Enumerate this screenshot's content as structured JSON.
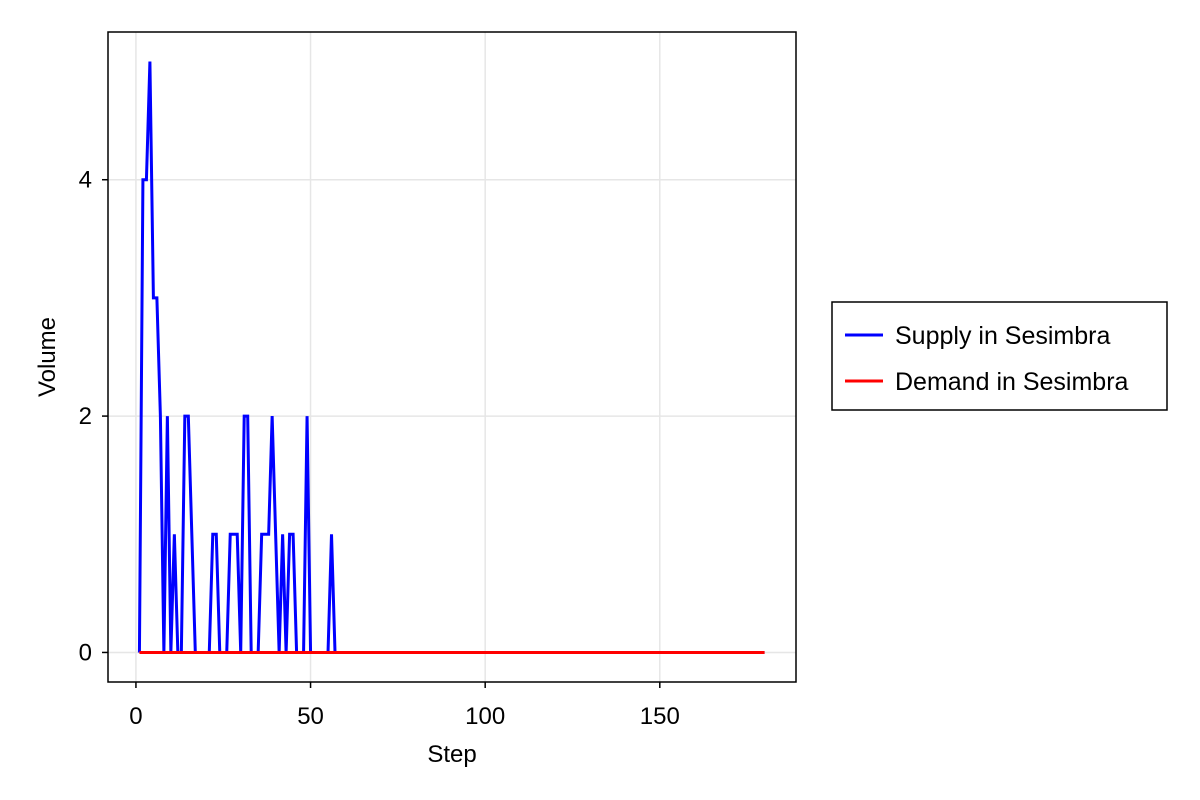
{
  "chart_data": {
    "type": "line",
    "xlabel": "Step",
    "ylabel": "Volume",
    "xlim": [
      -8,
      189
    ],
    "ylim": [
      -0.25,
      5.25
    ],
    "xticks": [
      0,
      50,
      100,
      150
    ],
    "yticks": [
      0,
      2,
      4
    ],
    "grid": true,
    "legend_position": "right",
    "series": [
      {
        "name": "Supply in Sesimbra",
        "color": "#0000ff",
        "values": [
          [
            1,
            0
          ],
          [
            2,
            4
          ],
          [
            3,
            4
          ],
          [
            4,
            5
          ],
          [
            5,
            3
          ],
          [
            6,
            3
          ],
          [
            7,
            2
          ],
          [
            8,
            0
          ],
          [
            9,
            2
          ],
          [
            10,
            0
          ],
          [
            11,
            1
          ],
          [
            12,
            0
          ],
          [
            13,
            0
          ],
          [
            14,
            2
          ],
          [
            15,
            2
          ],
          [
            16,
            1
          ],
          [
            17,
            0
          ],
          [
            18,
            0
          ],
          [
            19,
            0
          ],
          [
            20,
            0
          ],
          [
            21,
            0
          ],
          [
            22,
            1
          ],
          [
            23,
            1
          ],
          [
            24,
            0
          ],
          [
            25,
            0
          ],
          [
            26,
            0
          ],
          [
            27,
            1
          ],
          [
            28,
            1
          ],
          [
            29,
            1
          ],
          [
            30,
            0
          ],
          [
            31,
            2
          ],
          [
            32,
            2
          ],
          [
            33,
            0
          ],
          [
            34,
            0
          ],
          [
            35,
            0
          ],
          [
            36,
            1
          ],
          [
            37,
            1
          ],
          [
            38,
            1
          ],
          [
            39,
            2
          ],
          [
            40,
            1
          ],
          [
            41,
            0
          ],
          [
            42,
            1
          ],
          [
            43,
            0
          ],
          [
            44,
            1
          ],
          [
            45,
            1
          ],
          [
            46,
            0
          ],
          [
            47,
            0
          ],
          [
            48,
            0
          ],
          [
            49,
            2
          ],
          [
            50,
            0
          ],
          [
            51,
            0
          ],
          [
            52,
            0
          ],
          [
            53,
            0
          ],
          [
            54,
            0
          ],
          [
            55,
            0
          ],
          [
            56,
            1
          ],
          [
            57,
            0
          ],
          [
            58,
            0
          ],
          [
            60,
            0
          ],
          [
            70,
            0
          ],
          [
            80,
            0
          ],
          [
            90,
            0
          ],
          [
            100,
            0
          ],
          [
            110,
            0
          ],
          [
            120,
            0
          ],
          [
            130,
            0
          ],
          [
            140,
            0
          ],
          [
            150,
            0
          ],
          [
            160,
            0
          ],
          [
            170,
            0
          ],
          [
            180,
            0
          ]
        ]
      },
      {
        "name": "Demand in Sesimbra",
        "color": "#ff0000",
        "values": [
          [
            1,
            0
          ],
          [
            180,
            0
          ]
        ]
      }
    ]
  }
}
